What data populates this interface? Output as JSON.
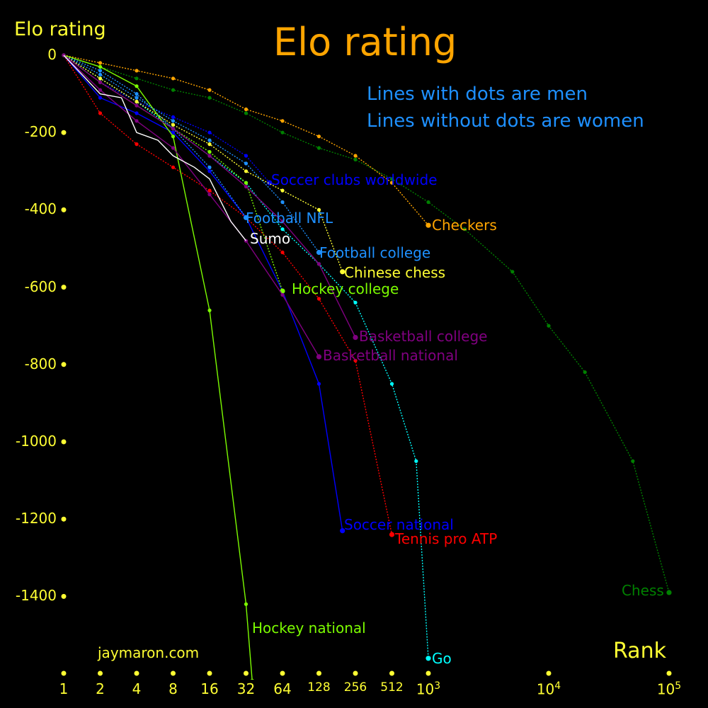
{
  "title": "Elo rating",
  "ylabel": "Elo rating",
  "xlabel": "Rank",
  "credit": "jaymaron.com",
  "notes": [
    "Lines with dots are men",
    "Lines without dots are women"
  ],
  "colors": {
    "background": "#000000",
    "title": "#ffa500",
    "axis": "#ffff33",
    "note": "#1e90ff"
  },
  "chart_data": {
    "type": "line",
    "title": "Elo rating",
    "xlabel": "Rank",
    "ylabel": "Elo rating",
    "xscale": "log",
    "xlim": [
      1,
      100000
    ],
    "ylim": [
      -1600,
      0
    ],
    "grid": false,
    "yticks": [
      {
        "value": 0,
        "label": "0"
      },
      {
        "value": -200,
        "label": "-200"
      },
      {
        "value": -400,
        "label": "-400"
      },
      {
        "value": -600,
        "label": "-600"
      },
      {
        "value": -800,
        "label": "-800"
      },
      {
        "value": -1000,
        "label": "-1000"
      },
      {
        "value": -1200,
        "label": "-1200"
      },
      {
        "value": -1400,
        "label": "-1400"
      }
    ],
    "xticks": [
      {
        "value": 1,
        "label": "1"
      },
      {
        "value": 2,
        "label": "2"
      },
      {
        "value": 4,
        "label": "4"
      },
      {
        "value": 8,
        "label": "8"
      },
      {
        "value": 16,
        "label": "16"
      },
      {
        "value": 32,
        "label": "32"
      },
      {
        "value": 64,
        "label": "64"
      },
      {
        "value": 128,
        "label": "128"
      },
      {
        "value": 256,
        "label": "256"
      },
      {
        "value": 512,
        "label": "512"
      },
      {
        "value": 1000,
        "label": "10",
        "sup": "3"
      },
      {
        "value": 10000,
        "label": "10",
        "sup": "4"
      },
      {
        "value": 100000,
        "label": "10",
        "sup": "5"
      }
    ],
    "series": [
      {
        "name": "Chess",
        "color": "#008000",
        "dots": true,
        "dotted": true,
        "x": [
          1,
          2,
          4,
          8,
          16,
          32,
          64,
          128,
          256,
          512,
          1000,
          2000,
          5000,
          10000,
          20000,
          50000,
          100000
        ],
        "y": [
          0,
          -30,
          -60,
          -90,
          -110,
          -150,
          -200,
          -240,
          -270,
          -320,
          -380,
          -450,
          -560,
          -700,
          -820,
          -1050,
          -1390
        ]
      },
      {
        "name": "Checkers",
        "color": "#ffa500",
        "dots": true,
        "dotted": true,
        "x": [
          1,
          2,
          4,
          8,
          16,
          32,
          64,
          128,
          256,
          512,
          1000
        ],
        "y": [
          0,
          -20,
          -40,
          -60,
          -90,
          -140,
          -170,
          -210,
          -260,
          -330,
          -440
        ]
      },
      {
        "name": "Go",
        "color": "#00ffff",
        "dots": true,
        "dotted": true,
        "x": [
          1,
          2,
          4,
          8,
          16,
          32,
          64,
          128,
          256,
          512,
          800,
          1000
        ],
        "y": [
          0,
          -60,
          -120,
          -190,
          -260,
          -330,
          -450,
          -540,
          -640,
          -850,
          -1050,
          -1560
        ]
      },
      {
        "name": "Tennis pro ATP",
        "color": "#ff0000",
        "dots": true,
        "dotted": true,
        "x": [
          1,
          2,
          4,
          8,
          16,
          32,
          64,
          128,
          256,
          512
        ],
        "y": [
          0,
          -150,
          -230,
          -290,
          -350,
          -420,
          -510,
          -630,
          -790,
          -1240
        ]
      },
      {
        "name": "Soccer national",
        "color": "#0000ff",
        "dots": true,
        "dotted": false,
        "x": [
          1,
          2,
          4,
          8,
          16,
          32,
          64,
          128,
          200
        ],
        "y": [
          0,
          -110,
          -150,
          -200,
          -300,
          -420,
          -610,
          -850,
          -1230
        ]
      },
      {
        "name": "Soccer clubs worldwide",
        "color": "#0000ff",
        "dots": true,
        "dotted": true,
        "x": [
          1,
          2,
          4,
          8,
          16,
          32,
          50
        ],
        "y": [
          0,
          -70,
          -120,
          -160,
          -200,
          -260,
          -330
        ]
      },
      {
        "name": "Football NFL",
        "color": "#1e90ff",
        "dots": true,
        "dotted": true,
        "x": [
          1,
          2,
          4,
          8,
          16,
          32
        ],
        "y": [
          0,
          -40,
          -100,
          -190,
          -290,
          -420
        ]
      },
      {
        "name": "Football college",
        "color": "#1e90ff",
        "dots": true,
        "dotted": true,
        "x": [
          1,
          2,
          4,
          8,
          16,
          32,
          64,
          128
        ],
        "y": [
          0,
          -50,
          -110,
          -170,
          -220,
          -280,
          -380,
          -510
        ]
      },
      {
        "name": "Chinese chess",
        "color": "#ffff33",
        "dots": true,
        "dotted": true,
        "x": [
          1,
          2,
          4,
          8,
          16,
          32,
          64,
          128,
          200
        ],
        "y": [
          0,
          -60,
          -120,
          -180,
          -230,
          -300,
          -350,
          -400,
          -560
        ]
      },
      {
        "name": "Hockey college",
        "color": "#7cfc00",
        "dots": true,
        "dotted": true,
        "x": [
          1,
          2,
          4,
          8,
          16,
          32,
          64
        ],
        "y": [
          0,
          -70,
          -130,
          -190,
          -250,
          -330,
          -610
        ]
      },
      {
        "name": "Hockey national",
        "color": "#7cfc00",
        "dots": true,
        "dotted": false,
        "x": [
          1,
          2,
          4,
          8,
          16,
          32,
          36
        ],
        "y": [
          0,
          -30,
          -80,
          -210,
          -660,
          -1420,
          -1620
        ]
      },
      {
        "name": "Basketball college",
        "color": "#800080",
        "dots": true,
        "dotted": false,
        "x": [
          1,
          2,
          4,
          8,
          16,
          32,
          64,
          128,
          256
        ],
        "y": [
          0,
          -70,
          -130,
          -190,
          -260,
          -340,
          -430,
          -540,
          -730
        ]
      },
      {
        "name": "Basketball national",
        "color": "#800080",
        "dots": true,
        "dotted": false,
        "x": [
          1,
          2,
          4,
          8,
          16,
          32,
          64,
          128
        ],
        "y": [
          0,
          -90,
          -170,
          -240,
          -360,
          -480,
          -620,
          -780
        ]
      },
      {
        "name": "Sumo",
        "color": "#ffffff",
        "dots": false,
        "dotted": false,
        "x": [
          1,
          2,
          3,
          4,
          6,
          8,
          12,
          16,
          24,
          32
        ],
        "y": [
          0,
          -100,
          -110,
          -200,
          -220,
          -260,
          -290,
          -320,
          -430,
          -480
        ]
      }
    ]
  }
}
